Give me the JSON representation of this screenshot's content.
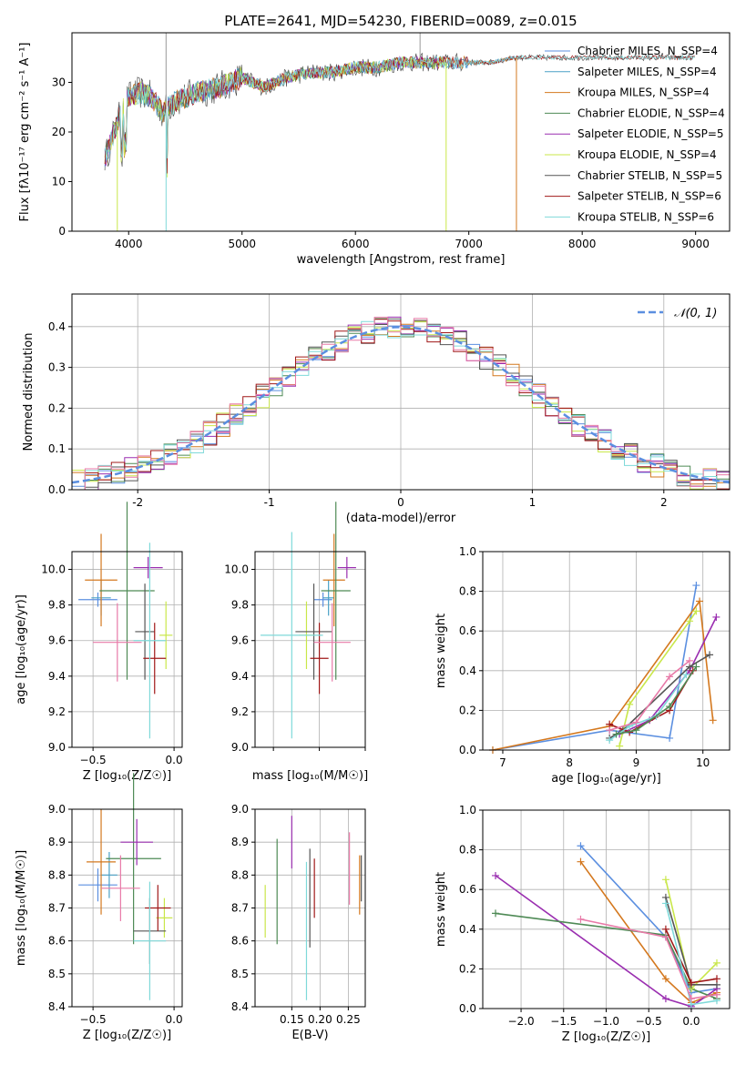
{
  "title": "PLATE=2641, MJD=54230, FIBERID=0089, z=0.015",
  "colors": {
    "chabrier_miles": "#5b8fe0",
    "salpeter_miles": "#4aa1c6",
    "kroupa_miles": "#d4781e",
    "chabrier_elodie": "#4e8a55",
    "salpeter_elodie": "#9a2eb0",
    "kroupa_elodie": "#c9e74a",
    "chabrier_stelib": "#555555",
    "salpeter_stelib": "#a01818",
    "kroupa_stelib": "#7fd9d9",
    "pink": "#e87aa8",
    "gauss": "#5b8fe0"
  },
  "chart_data": [
    {
      "type": "line",
      "id": "spectrum",
      "title": "PLATE=2641, MJD=54230, FIBERID=0089, z=0.015",
      "xlabel": "wavelength [Angstrom, rest frame]",
      "ylabel": "Flux [fλ10⁻¹⁷ erg cm⁻² s⁻¹ A⁻¹]",
      "xlim": [
        3500,
        9300
      ],
      "ylim": [
        0,
        40
      ],
      "xticks": [
        4000,
        5000,
        6000,
        7000,
        8000,
        9000
      ],
      "yticks": [
        0,
        10,
        20,
        30
      ],
      "legend_position": "top-right",
      "legend": [
        "Chabrier MILES, N_SSP=4",
        "Salpeter MILES, N_SSP=4",
        "Kroupa MILES, N_SSP=4",
        "Chabrier ELODIE, N_SSP=4",
        "Salpeter ELODIE, N_SSP=5",
        "Kroupa ELODIE, N_SSP=4",
        "Chabrier STELIB, N_SSP=5",
        "Salpeter STELIB, N_SSP=6",
        "Kroupa STELIB, N_SSP=6"
      ],
      "continuum": {
        "x": [
          3800,
          3900,
          4000,
          4100,
          4200,
          4300,
          4400,
          4600,
          4800,
          5000,
          5200,
          5400,
          5600,
          5800,
          6000,
          6200,
          6400,
          6600,
          6800,
          7000,
          7200,
          7400,
          7600,
          7800,
          8000,
          8200,
          8400,
          8600,
          8800,
          9000
        ],
        "y": [
          15,
          22,
          27,
          28,
          27,
          24,
          26,
          28,
          29,
          31,
          29,
          31,
          32,
          32,
          33,
          33,
          34,
          34,
          34,
          34,
          34,
          35,
          35,
          35,
          35,
          35,
          35,
          35,
          35,
          35
        ]
      }
    },
    {
      "type": "histogram",
      "id": "residuals",
      "xlabel": "(data-model)/error",
      "ylabel": "Normed distribution",
      "xlim": [
        -2.5,
        2.5
      ],
      "ylim": [
        0,
        0.48
      ],
      "xticks": [
        -2,
        -1,
        0,
        1,
        2
      ],
      "yticks": [
        0.0,
        0.1,
        0.2,
        0.3,
        0.4
      ],
      "legend": [
        "𝒩(0, 1)"
      ],
      "legend_position": "top-right",
      "bin_width": 0.1,
      "gaussian": {
        "mean": 0,
        "sigma": 1
      }
    },
    {
      "type": "scatter",
      "id": "age_vs_Z",
      "xlabel": "Z [log₁₀(Z/Z☉)]",
      "ylabel": "age  [log₁₀(age/yr)]",
      "xlim": [
        -0.63,
        0.05
      ],
      "ylim": [
        9.0,
        10.1
      ],
      "xticks": [
        -0.5,
        0.0
      ],
      "xticklabels": [
        "−0.5",
        "0.0"
      ],
      "yticks": [
        9.0,
        9.2,
        9.4,
        9.6,
        9.8,
        10.0
      ],
      "points": [
        {
          "x": -0.47,
          "y": 9.83,
          "xerr": 0.12,
          "yerr": 0.04,
          "color": "chabrier_miles"
        },
        {
          "x": -0.45,
          "y": 9.84,
          "xerr": 0.06,
          "yerr": 0.1,
          "color": "salpeter_miles"
        },
        {
          "x": -0.45,
          "y": 9.94,
          "xerr": 0.1,
          "yerr": 0.26,
          "color": "kroupa_miles"
        },
        {
          "x": -0.29,
          "y": 9.88,
          "xerr": 0.17,
          "yerr": 0.5,
          "color": "chabrier_elodie"
        },
        {
          "x": -0.16,
          "y": 10.01,
          "xerr": 0.09,
          "yerr": 0.06,
          "color": "salpeter_elodie"
        },
        {
          "x": -0.05,
          "y": 9.63,
          "xerr": 0.04,
          "yerr": 0.19,
          "color": "kroupa_elodie"
        },
        {
          "x": -0.18,
          "y": 9.65,
          "xerr": 0.06,
          "yerr": 0.27,
          "color": "chabrier_stelib"
        },
        {
          "x": -0.12,
          "y": 9.5,
          "xerr": 0.07,
          "yerr": 0.2,
          "color": "salpeter_stelib"
        },
        {
          "x": -0.15,
          "y": 9.6,
          "xerr": 0.1,
          "yerr": 0.55,
          "color": "kroupa_stelib"
        },
        {
          "x": -0.35,
          "y": 9.59,
          "xerr": 0.15,
          "yerr": 0.22,
          "color": "pink"
        }
      ]
    },
    {
      "type": "scatter",
      "id": "age_vs_mass",
      "xlabel": "mass [log₁₀(M/M☉)]",
      "ylabel": "",
      "xlim": [
        8.4,
        9.0
      ],
      "ylim": [
        9.0,
        10.1
      ],
      "xticks": [
        8.5,
        8.75,
        9.0
      ],
      "xticklabels": [
        "",
        "",
        ""
      ],
      "shown_xticks": [
        8.6,
        8.8,
        9.0
      ],
      "yticks": [
        9.0,
        9.2,
        9.4,
        9.6,
        9.8,
        10.0
      ],
      "points": [
        {
          "x": 8.77,
          "y": 9.83,
          "xerr": 0.05,
          "yerr": 0.04,
          "color": "chabrier_miles"
        },
        {
          "x": 8.8,
          "y": 9.84,
          "xerr": 0.03,
          "yerr": 0.1,
          "color": "salpeter_miles"
        },
        {
          "x": 8.83,
          "y": 9.94,
          "xerr": 0.06,
          "yerr": 0.26,
          "color": "kroupa_miles"
        },
        {
          "x": 8.84,
          "y": 9.88,
          "xerr": 0.08,
          "yerr": 0.5,
          "color": "chabrier_elodie"
        },
        {
          "x": 8.9,
          "y": 10.01,
          "xerr": 0.05,
          "yerr": 0.06,
          "color": "salpeter_elodie"
        },
        {
          "x": 8.68,
          "y": 9.63,
          "xerr": 0.04,
          "yerr": 0.19,
          "color": "kroupa_elodie"
        },
        {
          "x": 8.72,
          "y": 9.65,
          "xerr": 0.1,
          "yerr": 0.27,
          "color": "chabrier_stelib"
        },
        {
          "x": 8.75,
          "y": 9.5,
          "xerr": 0.05,
          "yerr": 0.2,
          "color": "salpeter_stelib"
        },
        {
          "x": 8.6,
          "y": 9.63,
          "xerr": 0.17,
          "yerr": 0.58,
          "color": "kroupa_stelib"
        },
        {
          "x": 8.82,
          "y": 9.59,
          "xerr": 0.1,
          "yerr": 0.22,
          "color": "pink"
        }
      ]
    },
    {
      "type": "line",
      "id": "weight_vs_age",
      "xlabel": "age  [log₁₀(age/yr)]",
      "ylabel": "mass weight",
      "xlim": [
        6.7,
        10.4
      ],
      "ylim": [
        0,
        1.0
      ],
      "xticks": [
        7,
        8,
        9,
        10
      ],
      "yticks": [
        0.0,
        0.2,
        0.4,
        0.6,
        0.8,
        1.0
      ],
      "series": [
        {
          "color": "chabrier_miles",
          "x": [
            6.85,
            8.6,
            9.5,
            9.9
          ],
          "y": [
            0.0,
            0.1,
            0.06,
            0.83
          ]
        },
        {
          "color": "kroupa_miles",
          "x": [
            6.85,
            8.6,
            9.95,
            10.15
          ],
          "y": [
            0.0,
            0.12,
            0.75,
            0.15
          ]
        },
        {
          "color": "salpeter_elodie",
          "x": [
            8.75,
            9.2,
            9.8,
            10.2
          ],
          "y": [
            0.08,
            0.15,
            0.4,
            0.67
          ]
        },
        {
          "color": "kroupa_elodie",
          "x": [
            8.75,
            8.9,
            9.8,
            9.9
          ],
          "y": [
            0.02,
            0.23,
            0.65,
            0.7
          ]
        },
        {
          "color": "chabrier_stelib",
          "x": [
            8.6,
            8.8,
            9.8,
            10.1
          ],
          "y": [
            0.06,
            0.1,
            0.42,
            0.48
          ]
        },
        {
          "color": "salpeter_stelib",
          "x": [
            8.6,
            8.9,
            9.5,
            9.85
          ],
          "y": [
            0.13,
            0.09,
            0.2,
            0.4
          ]
        },
        {
          "color": "kroupa_stelib",
          "x": [
            8.6,
            8.9,
            9.3,
            9.75
          ],
          "y": [
            0.05,
            0.12,
            0.17,
            0.38
          ]
        },
        {
          "color": "chabrier_elodie",
          "x": [
            8.7,
            9.0,
            9.5,
            9.9
          ],
          "y": [
            0.08,
            0.1,
            0.22,
            0.42
          ]
        },
        {
          "color": "pink",
          "x": [
            8.6,
            9.0,
            9.5,
            9.8
          ],
          "y": [
            0.1,
            0.14,
            0.37,
            0.45
          ]
        }
      ]
    },
    {
      "type": "scatter",
      "id": "mass_vs_Z",
      "xlabel": "Z [log₁₀(Z/Z☉)]",
      "ylabel": "mass [log₁₀(M/M☉)]",
      "xlim": [
        -0.63,
        0.05
      ],
      "ylim": [
        8.4,
        9.0
      ],
      "xticks": [
        -0.5,
        0.0
      ],
      "xticklabels": [
        "−0.5",
        "0.0"
      ],
      "yticks": [
        8.4,
        8.5,
        8.6,
        8.7,
        8.8,
        8.9,
        9.0
      ],
      "points": [
        {
          "x": -0.47,
          "y": 8.77,
          "xerr": 0.12,
          "yerr": 0.05,
          "color": "chabrier_miles"
        },
        {
          "x": -0.4,
          "y": 8.8,
          "xerr": 0.05,
          "yerr": 0.07,
          "color": "salpeter_miles"
        },
        {
          "x": -0.45,
          "y": 8.84,
          "xerr": 0.09,
          "yerr": 0.16,
          "color": "kroupa_miles"
        },
        {
          "x": -0.25,
          "y": 8.85,
          "xerr": 0.17,
          "yerr": 0.26,
          "color": "chabrier_elodie"
        },
        {
          "x": -0.23,
          "y": 8.9,
          "xerr": 0.1,
          "yerr": 0.07,
          "color": "salpeter_elodie"
        },
        {
          "x": -0.06,
          "y": 8.67,
          "xerr": 0.05,
          "yerr": 0.06,
          "color": "kroupa_elodie"
        },
        {
          "x": -0.15,
          "y": 8.63,
          "xerr": 0.1,
          "yerr": 0.1,
          "color": "chabrier_stelib"
        },
        {
          "x": -0.1,
          "y": 8.7,
          "xerr": 0.08,
          "yerr": 0.07,
          "color": "salpeter_stelib"
        },
        {
          "x": -0.15,
          "y": 8.6,
          "xerr": 0.1,
          "yerr": 0.18,
          "color": "kroupa_stelib"
        },
        {
          "x": -0.33,
          "y": 8.76,
          "xerr": 0.12,
          "yerr": 0.1,
          "color": "pink"
        }
      ]
    },
    {
      "type": "scatter",
      "id": "mass_vs_ebv",
      "xlabel": "E(B-V)",
      "ylabel": "",
      "xlim": [
        0.085,
        0.28
      ],
      "ylim": [
        8.4,
        9.0
      ],
      "xticks": [
        0.15,
        0.2,
        0.25
      ],
      "xticklabels": [
        "0.15",
        "0.20",
        "0.25"
      ],
      "yticks": [
        8.4,
        8.5,
        8.6,
        8.7,
        8.8,
        8.9,
        9.0
      ],
      "points": [
        {
          "x": 0.103,
          "y": 8.69,
          "yerr": 0.08,
          "color": "kroupa_elodie"
        },
        {
          "x": 0.124,
          "y": 8.75,
          "yerr": 0.16,
          "color": "chabrier_elodie"
        },
        {
          "x": 0.15,
          "y": 8.9,
          "yerr": 0.08,
          "color": "salpeter_elodie"
        },
        {
          "x": 0.176,
          "y": 8.63,
          "yerr": 0.21,
          "color": "kroupa_stelib"
        },
        {
          "x": 0.182,
          "y": 8.73,
          "yerr": 0.15,
          "color": "chabrier_stelib"
        },
        {
          "x": 0.19,
          "y": 8.76,
          "yerr": 0.09,
          "color": "salpeter_stelib"
        },
        {
          "x": 0.252,
          "y": 8.82,
          "yerr": 0.11,
          "color": "pink"
        },
        {
          "x": 0.27,
          "y": 8.77,
          "yerr": 0.09,
          "color": "kroupa_miles"
        },
        {
          "x": 0.273,
          "y": 8.79,
          "yerr": 0.07,
          "color": "chabrier_stelib"
        }
      ]
    },
    {
      "type": "line",
      "id": "weight_vs_Z",
      "xlabel": "Z [log₁₀(Z/Z☉)]",
      "ylabel": "mass weight",
      "xlim": [
        -2.45,
        0.45
      ],
      "ylim": [
        0,
        1.0
      ],
      "xticks": [
        -2.0,
        -1.5,
        -1.0,
        -0.5,
        0.0
      ],
      "xticklabels": [
        "−2.0",
        "−1.5",
        "−1.0",
        "−0.5",
        "0.0"
      ],
      "yticks": [
        0.0,
        0.2,
        0.4,
        0.6,
        0.8,
        1.0
      ],
      "series": [
        {
          "color": "chabrier_miles",
          "x": [
            -1.3,
            -0.3,
            0.0,
            0.3
          ],
          "y": [
            0.82,
            0.36,
            0.08,
            0.1
          ]
        },
        {
          "color": "kroupa_miles",
          "x": [
            -1.3,
            -0.3,
            0.0,
            0.3
          ],
          "y": [
            0.74,
            0.15,
            0.03,
            0.08
          ]
        },
        {
          "color": "salpeter_elodie",
          "x": [
            -2.3,
            -0.3,
            0.0,
            0.3
          ],
          "y": [
            0.67,
            0.05,
            0.01,
            0.1
          ]
        },
        {
          "color": "chabrier_elodie",
          "x": [
            -2.3,
            -0.3,
            0.0,
            0.3
          ],
          "y": [
            0.48,
            0.37,
            0.1,
            0.05
          ]
        },
        {
          "color": "kroupa_elodie",
          "x": [
            -0.3,
            0.0,
            0.3
          ],
          "y": [
            0.65,
            0.1,
            0.23
          ]
        },
        {
          "color": "chabrier_stelib",
          "x": [
            -0.3,
            0.0,
            0.3
          ],
          "y": [
            0.56,
            0.12,
            0.12
          ]
        },
        {
          "color": "salpeter_stelib",
          "x": [
            -0.3,
            0.0,
            0.3
          ],
          "y": [
            0.4,
            0.13,
            0.15
          ]
        },
        {
          "color": "kroupa_stelib",
          "x": [
            -0.3,
            0.0,
            0.3
          ],
          "y": [
            0.53,
            0.02,
            0.04
          ]
        },
        {
          "color": "pink",
          "x": [
            -1.3,
            -0.3,
            0.0,
            0.3
          ],
          "y": [
            0.45,
            0.36,
            0.05,
            0.07
          ]
        }
      ]
    }
  ]
}
